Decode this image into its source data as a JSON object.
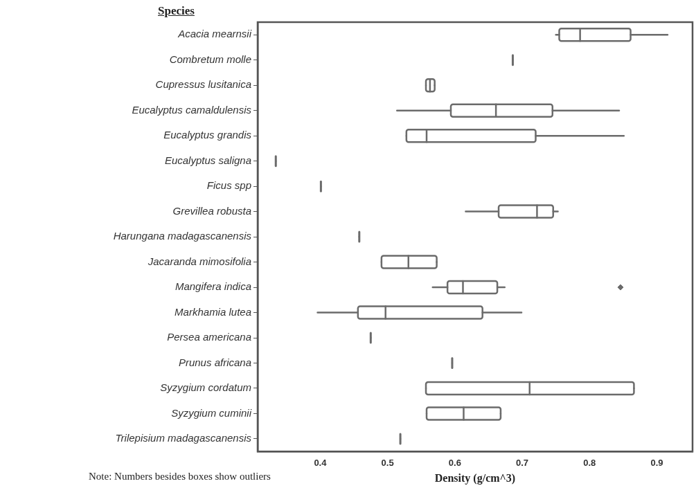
{
  "chart_data": {
    "type": "box",
    "orientation": "horizontal",
    "ylabel": "Species",
    "xlabel": "Density (g/cm^3)",
    "categories": [
      "Acacia mearnsii",
      "Combretum molle",
      "Cupressus lusitanica",
      "Eucalyptus camaldulensis",
      "Eucalyptus grandis",
      "Eucalyptus saligna",
      "Ficus spp",
      "Grevillea robusta",
      "Harungana madagascanensis",
      "Jacaranda mimosifolia",
      "Mangifera indica",
      "Markhamia lutea",
      "Persea americana",
      "Prunus africana",
      "Syzygium cordatum",
      "Syzygium cuminii",
      "Trilepisium madagascanensis"
    ],
    "color": "#6b6b6b",
    "boxes": [
      {
        "low": 0.75,
        "q1": 0.755,
        "median": 0.786,
        "q3": 0.861,
        "high": 0.916
      },
      {
        "low": 0.686,
        "q1": 0.686,
        "median": 0.686,
        "q3": 0.686,
        "high": 0.686
      },
      {
        "low": 0.557,
        "q1": 0.557,
        "median": 0.563,
        "q3": 0.57,
        "high": 0.57
      },
      {
        "low": 0.514,
        "q1": 0.594,
        "median": 0.661,
        "q3": 0.745,
        "high": 0.844
      },
      {
        "low": 0.528,
        "q1": 0.528,
        "median": 0.558,
        "q3": 0.72,
        "high": 0.851
      },
      {
        "low": 0.334,
        "q1": 0.334,
        "median": 0.334,
        "q3": 0.334,
        "high": 0.334
      },
      {
        "low": 0.401,
        "q1": 0.401,
        "median": 0.401,
        "q3": 0.401,
        "high": 0.401
      },
      {
        "low": 0.616,
        "q1": 0.665,
        "median": 0.722,
        "q3": 0.746,
        "high": 0.753
      },
      {
        "low": 0.458,
        "q1": 0.458,
        "median": 0.458,
        "q3": 0.458,
        "high": 0.458
      },
      {
        "low": 0.491,
        "q1": 0.491,
        "median": 0.531,
        "q3": 0.573,
        "high": 0.573
      },
      {
        "low": 0.567,
        "q1": 0.589,
        "median": 0.612,
        "q3": 0.663,
        "high": 0.674,
        "outliers": [
          0.846
        ]
      },
      {
        "low": 0.396,
        "q1": 0.456,
        "median": 0.497,
        "q3": 0.641,
        "high": 0.699
      },
      {
        "low": 0.475,
        "q1": 0.475,
        "median": 0.475,
        "q3": 0.475,
        "high": 0.475
      },
      {
        "low": 0.596,
        "q1": 0.596,
        "median": 0.596,
        "q3": 0.596,
        "high": 0.596
      },
      {
        "low": 0.557,
        "q1": 0.557,
        "median": 0.711,
        "q3": 0.866,
        "high": 0.866
      },
      {
        "low": 0.558,
        "q1": 0.558,
        "median": 0.613,
        "q3": 0.668,
        "high": 0.668
      },
      {
        "low": 0.519,
        "q1": 0.519,
        "median": 0.519,
        "q3": 0.519,
        "high": 0.519
      }
    ],
    "xlim": [
      0.307,
      0.953
    ],
    "xticks": [
      0.4,
      0.5,
      0.6,
      0.7,
      0.8,
      0.9
    ],
    "annotations": [
      "Note: Numbers besides boxes show outliers"
    ]
  }
}
